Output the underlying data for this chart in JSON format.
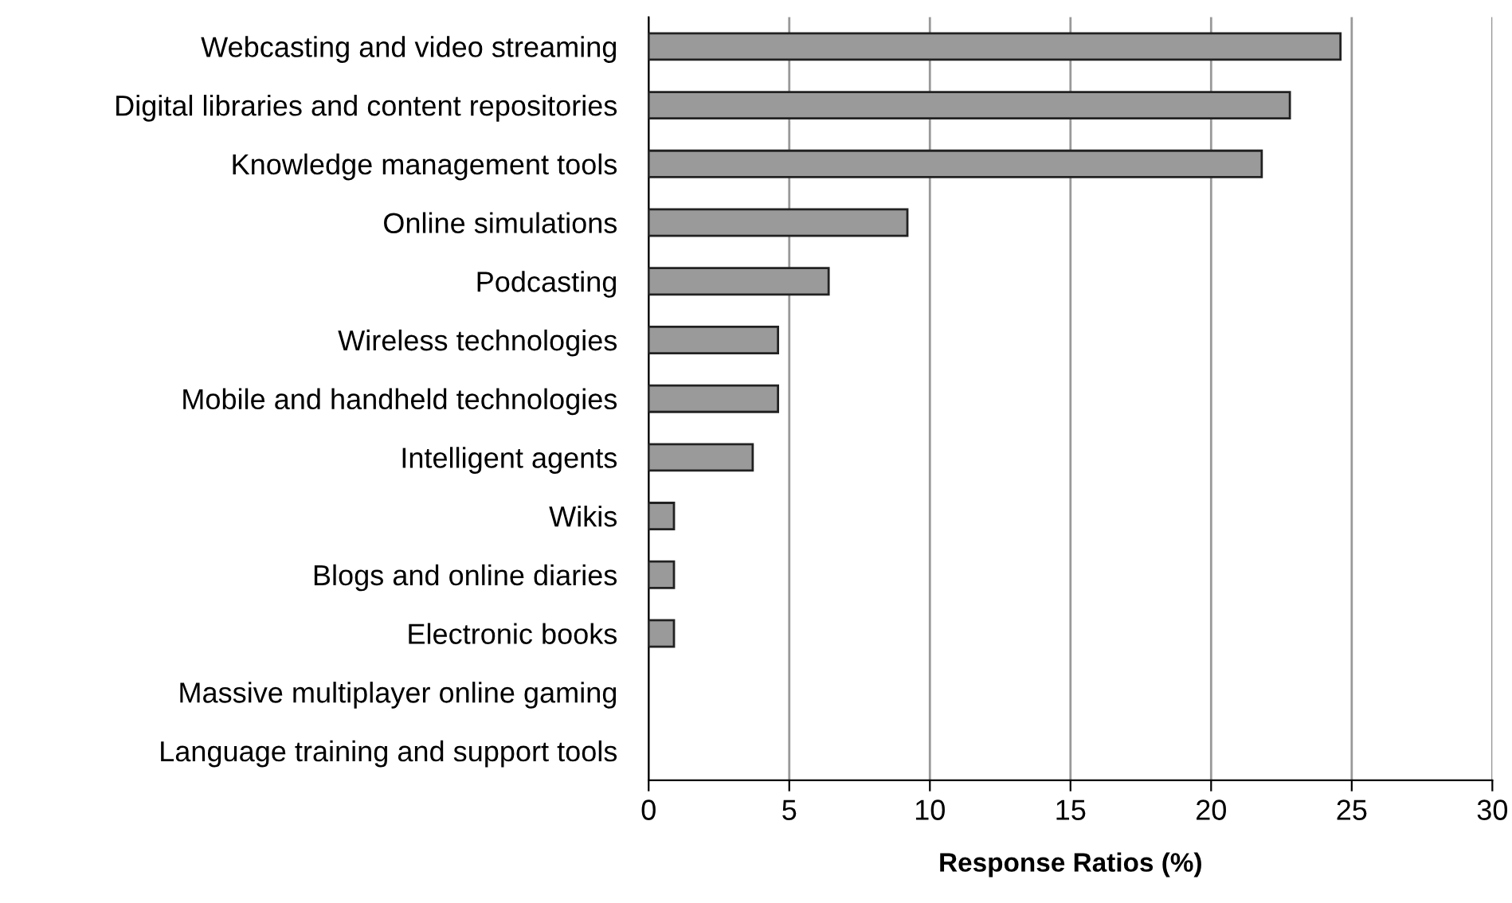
{
  "chart_data": {
    "type": "bar",
    "orientation": "horizontal",
    "xlabel": "Response Ratios (%)",
    "categories": [
      "Webcasting and video streaming",
      "Digital libraries and content repositories",
      "Knowledge management tools",
      "Online simulations",
      "Podcasting",
      "Wireless technologies",
      "Mobile and handheld technologies",
      "Intelligent agents",
      "Wikis",
      "Blogs and online diaries",
      "Electronic books",
      "Massive multiplayer online gaming",
      "Language training and support tools"
    ],
    "values": [
      24.6,
      22.8,
      21.8,
      9.2,
      6.4,
      4.6,
      4.6,
      3.7,
      0.9,
      0.9,
      0.9,
      0,
      0
    ],
    "color": "#9a9a9a",
    "xlim": [
      0,
      30
    ],
    "xticks": [
      0,
      5,
      10,
      15,
      20,
      25,
      30
    ],
    "grid": "x"
  }
}
